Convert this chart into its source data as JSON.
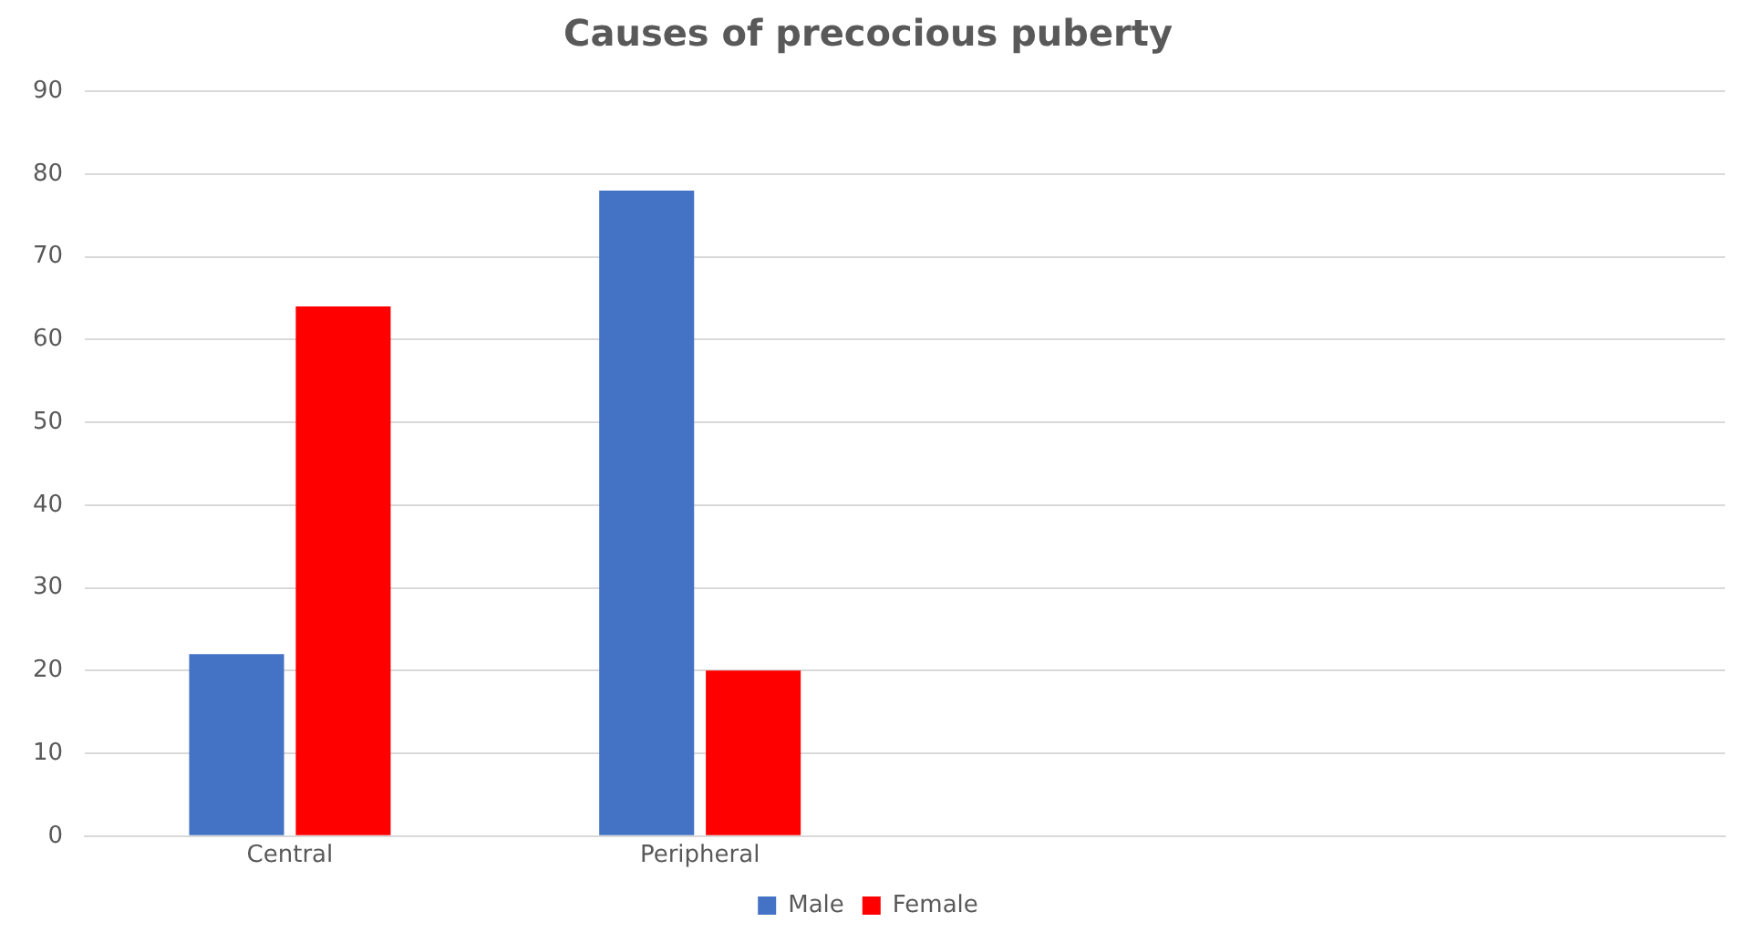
{
  "chart_data": {
    "type": "bar",
    "title": "Causes of precocious puberty",
    "categories": [
      "Central",
      "Peripheral",
      null,
      null
    ],
    "series": [
      {
        "name": "Male",
        "color": "#4472c4",
        "values": [
          22,
          78,
          null,
          null
        ]
      },
      {
        "name": "Female",
        "color": "#ff0000",
        "values": [
          64,
          20,
          null,
          null
        ]
      }
    ],
    "ylim": [
      0,
      90
    ],
    "yticks": [
      0,
      10,
      20,
      30,
      40,
      50,
      60,
      70,
      80,
      90
    ],
    "grid": "y",
    "legend": "bottom"
  }
}
